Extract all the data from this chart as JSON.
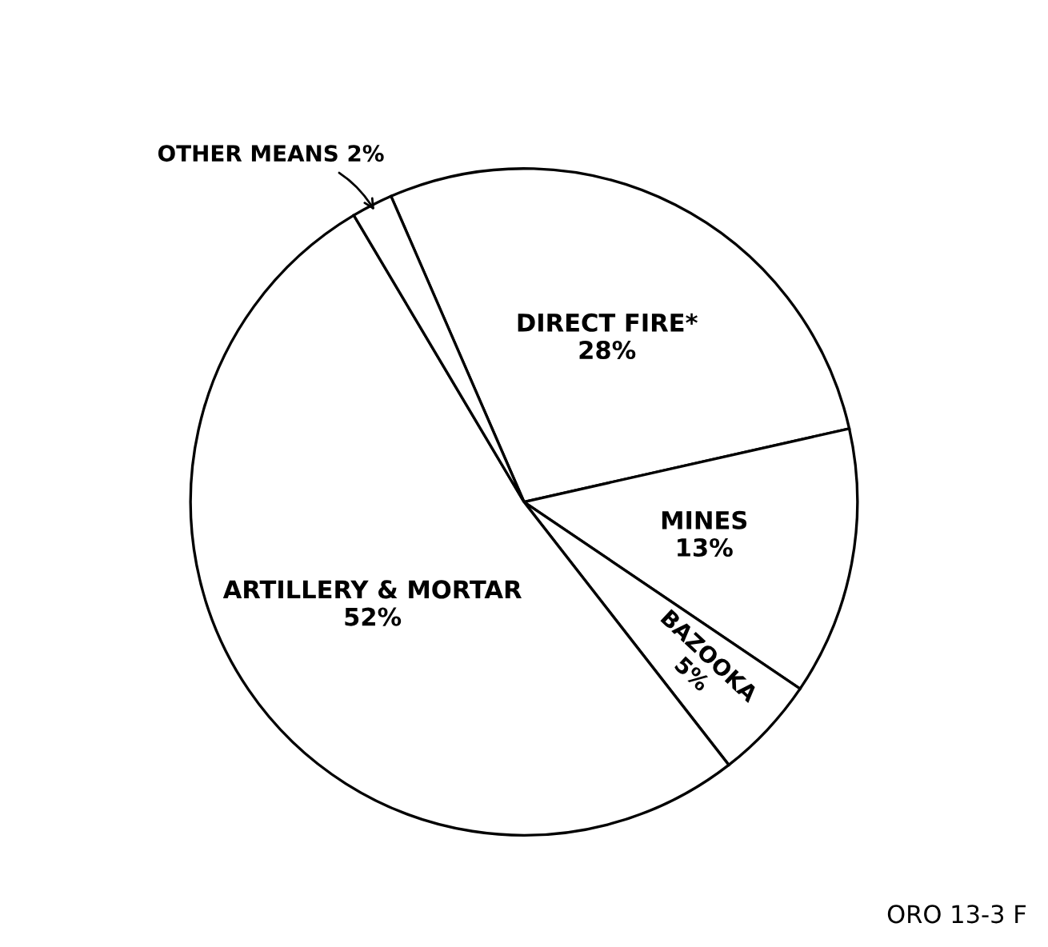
{
  "chart_data": {
    "type": "pie",
    "categories": [
      "DIRECT FIRE*",
      "MINES",
      "BAZOOKA",
      "ARTILLERY & MORTAR",
      "OTHER MEANS"
    ],
    "values": [
      28,
      13,
      5,
      52,
      2
    ],
    "value_labels": [
      "28%",
      "13%",
      "5%",
      "52%",
      "2%"
    ],
    "colors": [
      "#ffffff",
      "#ffffff",
      "#ffffff",
      "#ffffff",
      "#ffffff"
    ],
    "annotations": [
      "ORO 13-3 F"
    ]
  }
}
